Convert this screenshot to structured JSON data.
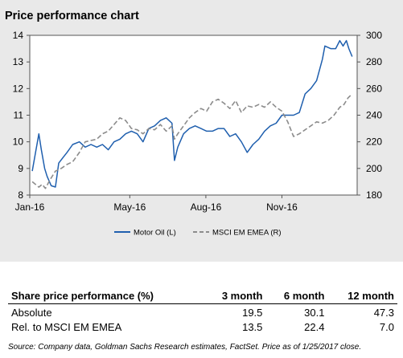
{
  "title": "Price performance chart",
  "chart_data": {
    "type": "line",
    "x_ticks": [
      "Jan-16",
      "May-16",
      "Aug-16",
      "Nov-16"
    ],
    "y_left": {
      "min": 8,
      "max": 14,
      "ticks": [
        8,
        9,
        10,
        11,
        12,
        13,
        14
      ]
    },
    "y_right": {
      "min": 180,
      "max": 300,
      "ticks": [
        180,
        200,
        220,
        240,
        260,
        280,
        300
      ]
    },
    "grid": false,
    "legend_position": "bottom",
    "series": [
      {
        "name": "Motor Oil (L)",
        "axis": "left",
        "color": "#1f5fae",
        "style": "solid",
        "points": [
          [
            "2016-01-04",
            8.9
          ],
          [
            "2016-01-08",
            9.6
          ],
          [
            "2016-01-12",
            10.3
          ],
          [
            "2016-01-15",
            9.7
          ],
          [
            "2016-01-19",
            9.0
          ],
          [
            "2016-01-22",
            8.7
          ],
          [
            "2016-01-27",
            8.35
          ],
          [
            "2016-02-01",
            8.3
          ],
          [
            "2016-02-05",
            9.2
          ],
          [
            "2016-02-10",
            9.4
          ],
          [
            "2016-02-15",
            9.6
          ],
          [
            "2016-02-22",
            9.9
          ],
          [
            "2016-03-01",
            10.0
          ],
          [
            "2016-03-08",
            9.8
          ],
          [
            "2016-03-15",
            9.9
          ],
          [
            "2016-03-22",
            9.8
          ],
          [
            "2016-03-29",
            9.9
          ],
          [
            "2016-04-05",
            9.7
          ],
          [
            "2016-04-12",
            10.0
          ],
          [
            "2016-04-19",
            10.1
          ],
          [
            "2016-04-26",
            10.3
          ],
          [
            "2016-05-03",
            10.4
          ],
          [
            "2016-05-10",
            10.3
          ],
          [
            "2016-05-17",
            10.0
          ],
          [
            "2016-05-24",
            10.5
          ],
          [
            "2016-05-31",
            10.6
          ],
          [
            "2016-06-07",
            10.8
          ],
          [
            "2016-06-14",
            10.9
          ],
          [
            "2016-06-21",
            10.7
          ],
          [
            "2016-06-24",
            9.3
          ],
          [
            "2016-06-28",
            9.8
          ],
          [
            "2016-07-05",
            10.3
          ],
          [
            "2016-07-12",
            10.5
          ],
          [
            "2016-07-19",
            10.6
          ],
          [
            "2016-07-26",
            10.5
          ],
          [
            "2016-08-02",
            10.4
          ],
          [
            "2016-08-09",
            10.4
          ],
          [
            "2016-08-16",
            10.5
          ],
          [
            "2016-08-23",
            10.5
          ],
          [
            "2016-08-30",
            10.2
          ],
          [
            "2016-09-06",
            10.3
          ],
          [
            "2016-09-13",
            10.0
          ],
          [
            "2016-09-20",
            9.6
          ],
          [
            "2016-09-27",
            9.9
          ],
          [
            "2016-10-04",
            10.1
          ],
          [
            "2016-10-11",
            10.4
          ],
          [
            "2016-10-18",
            10.6
          ],
          [
            "2016-10-25",
            10.7
          ],
          [
            "2016-11-01",
            11.0
          ],
          [
            "2016-11-08",
            11.0
          ],
          [
            "2016-11-15",
            11.0
          ],
          [
            "2016-11-22",
            11.1
          ],
          [
            "2016-11-29",
            11.8
          ],
          [
            "2016-12-06",
            12.0
          ],
          [
            "2016-12-13",
            12.3
          ],
          [
            "2016-12-20",
            13.1
          ],
          [
            "2016-12-23",
            13.6
          ],
          [
            "2016-12-30",
            13.5
          ],
          [
            "2017-01-05",
            13.5
          ],
          [
            "2017-01-10",
            13.8
          ],
          [
            "2017-01-14",
            13.6
          ],
          [
            "2017-01-18",
            13.8
          ],
          [
            "2017-01-21",
            13.5
          ],
          [
            "2017-01-25",
            13.2
          ]
        ]
      },
      {
        "name": "MSCI EM EMEA (R)",
        "axis": "right",
        "color": "#8c8c8c",
        "style": "dashed",
        "points": [
          [
            "2016-01-04",
            190
          ],
          [
            "2016-01-08",
            188
          ],
          [
            "2016-01-12",
            186
          ],
          [
            "2016-01-16",
            188
          ],
          [
            "2016-01-20",
            185
          ],
          [
            "2016-01-25",
            191
          ],
          [
            "2016-02-01",
            198
          ],
          [
            "2016-02-08",
            200
          ],
          [
            "2016-02-15",
            203
          ],
          [
            "2016-02-22",
            205
          ],
          [
            "2016-03-01",
            212
          ],
          [
            "2016-03-08",
            220
          ],
          [
            "2016-03-15",
            221
          ],
          [
            "2016-03-22",
            222
          ],
          [
            "2016-03-29",
            226
          ],
          [
            "2016-04-05",
            228
          ],
          [
            "2016-04-12",
            233
          ],
          [
            "2016-04-19",
            238
          ],
          [
            "2016-04-26",
            236
          ],
          [
            "2016-05-03",
            230
          ],
          [
            "2016-05-10",
            229
          ],
          [
            "2016-05-17",
            226
          ],
          [
            "2016-05-24",
            230
          ],
          [
            "2016-05-31",
            229
          ],
          [
            "2016-06-07",
            233
          ],
          [
            "2016-06-14",
            228
          ],
          [
            "2016-06-21",
            232
          ],
          [
            "2016-06-24",
            222
          ],
          [
            "2016-06-28",
            226
          ],
          [
            "2016-07-05",
            232
          ],
          [
            "2016-07-12",
            238
          ],
          [
            "2016-07-19",
            242
          ],
          [
            "2016-07-26",
            245
          ],
          [
            "2016-08-02",
            243
          ],
          [
            "2016-08-09",
            250
          ],
          [
            "2016-08-16",
            252
          ],
          [
            "2016-08-23",
            249
          ],
          [
            "2016-08-30",
            245
          ],
          [
            "2016-09-06",
            251
          ],
          [
            "2016-09-13",
            242
          ],
          [
            "2016-09-20",
            247
          ],
          [
            "2016-09-27",
            246
          ],
          [
            "2016-10-04",
            248
          ],
          [
            "2016-10-11",
            246
          ],
          [
            "2016-10-18",
            250
          ],
          [
            "2016-10-25",
            246
          ],
          [
            "2016-11-01",
            243
          ],
          [
            "2016-11-08",
            235
          ],
          [
            "2016-11-15",
            224
          ],
          [
            "2016-11-22",
            226
          ],
          [
            "2016-11-29",
            229
          ],
          [
            "2016-12-06",
            232
          ],
          [
            "2016-12-13",
            235
          ],
          [
            "2016-12-20",
            234
          ],
          [
            "2016-12-27",
            236
          ],
          [
            "2017-01-03",
            240
          ],
          [
            "2017-01-10",
            246
          ],
          [
            "2017-01-15",
            248
          ],
          [
            "2017-01-20",
            253
          ],
          [
            "2017-01-25",
            256
          ]
        ]
      }
    ]
  },
  "table": {
    "headers": [
      "Share price performance (%)",
      "3 month",
      "6 month",
      "12 month"
    ],
    "rows": [
      [
        "Absolute",
        "19.5",
        "30.1",
        "47.3"
      ],
      [
        "Rel. to MSCI EM EMEA",
        "13.5",
        "22.4",
        "7.0"
      ]
    ]
  },
  "source": "Source: Company data, Goldman Sachs Research estimates, FactSet. Price as of 1/25/2017 close."
}
